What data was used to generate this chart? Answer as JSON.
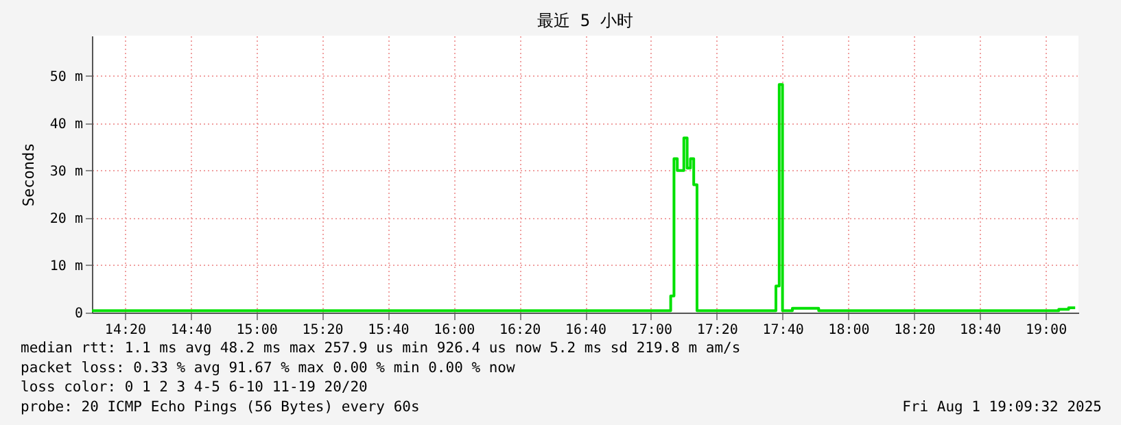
{
  "chart_data": {
    "type": "step",
    "title": "最近 5 小时",
    "ylabel": "Seconds",
    "x": [
      "2025-08-01T14:10",
      "2025-08-01T14:20",
      "2025-08-01T14:40",
      "2025-08-01T15:00",
      "2025-08-01T15:30",
      "2025-08-01T16:00",
      "2025-08-01T16:30",
      "2025-08-01T17:00",
      "2025-08-01T17:06",
      "2025-08-01T17:07",
      "2025-08-01T17:08",
      "2025-08-01T17:10",
      "2025-08-01T17:11",
      "2025-08-01T17:12",
      "2025-08-01T17:13",
      "2025-08-01T17:14",
      "2025-08-01T17:20",
      "2025-08-01T17:30",
      "2025-08-01T17:38",
      "2025-08-01T17:39",
      "2025-08-01T17:40",
      "2025-08-01T17:43",
      "2025-08-01T17:51",
      "2025-08-01T18:00",
      "2025-08-01T18:30",
      "2025-08-01T19:00",
      "2025-08-01T19:04",
      "2025-08-01T19:07",
      "2025-08-01T19:09"
    ],
    "series": [
      {
        "color": "#00e000",
        "values": [
          0.4,
          0.4,
          0.4,
          0.4,
          0.4,
          0.4,
          0.4,
          0.4,
          3.5,
          32.5,
          30,
          36.9,
          30.5,
          32.5,
          27,
          0.4,
          0.4,
          0.4,
          5.6,
          48.2,
          0.4,
          0.9,
          0.4,
          0.4,
          0.4,
          0.4,
          0.7,
          1,
          1
        ]
      }
    ],
    "xlim": [
      "2025-08-01T14:10",
      "2025-08-01T19:10"
    ],
    "xticks": [
      {
        "value": "2025-08-01T14:20",
        "label": "14:20"
      },
      {
        "value": "2025-08-01T14:40",
        "label": "14:40"
      },
      {
        "value": "2025-08-01T15:00",
        "label": "15:00"
      },
      {
        "value": "2025-08-01T15:20",
        "label": "15:20"
      },
      {
        "value": "2025-08-01T15:40",
        "label": "15:40"
      },
      {
        "value": "2025-08-01T16:00",
        "label": "16:00"
      },
      {
        "value": "2025-08-01T16:20",
        "label": "16:20"
      },
      {
        "value": "2025-08-01T16:40",
        "label": "16:40"
      },
      {
        "value": "2025-08-01T17:00",
        "label": "17:00"
      },
      {
        "value": "2025-08-01T17:20",
        "label": "17:20"
      },
      {
        "value": "2025-08-01T17:40",
        "label": "17:40"
      },
      {
        "value": "2025-08-01T18:00",
        "label": "18:00"
      },
      {
        "value": "2025-08-01T18:20",
        "label": "18:20"
      },
      {
        "value": "2025-08-01T18:40",
        "label": "18:40"
      },
      {
        "value": "2025-08-01T19:00",
        "label": "19:00"
      }
    ],
    "ylim": [
      0,
      58.5
    ],
    "yticks": [
      0,
      {
        "value": 10,
        "label": "10 m"
      },
      {
        "value": 20,
        "label": "20 m"
      },
      {
        "value": 30,
        "label": "30 m"
      },
      {
        "value": 40,
        "label": "40 m"
      },
      {
        "value": 50,
        "label": "50 m"
      }
    ],
    "grid": true,
    "annotations": [
      "median rtt:  1.1 ms avg  48.2 ms max  257.9 us min  926.4 us now  5.2 ms sd  219.8 m am/s",
      "packet loss: 0.33 % avg  91.67 % max  0.00 % min  0.00 % now",
      "loss color:  0  1  2  3  4-5  6-10  11-19  20/20",
      "probe:  20 ICMP Echo Pings (56 Bytes) every 60s",
      "Fri Aug  1 19:09:32 2025"
    ]
  }
}
